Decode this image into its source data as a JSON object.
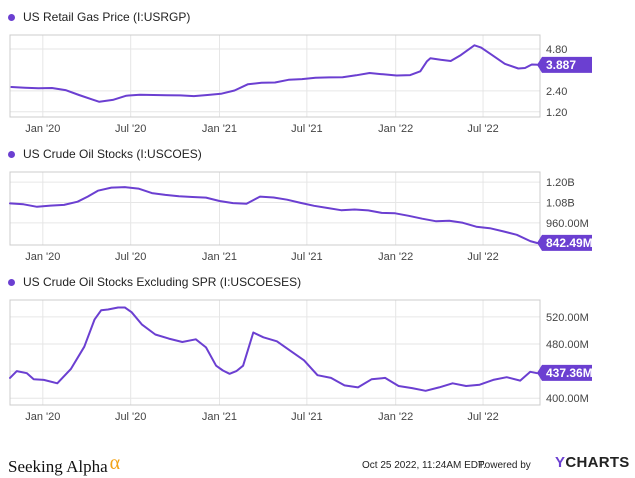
{
  "chart_data": [
    {
      "type": "line",
      "title": "US Retail Gas Price (I:USRGP)",
      "x_ticks": [
        "Jan '20",
        "Jul '20",
        "Jan '21",
        "Jul '21",
        "Jan '22",
        "Jul '22"
      ],
      "y_ticks": [
        "4.80",
        "2.40",
        "1.20"
      ],
      "y_tick_values": [
        4.8,
        2.4,
        1.2
      ],
      "ylim": [
        0.9,
        5.6
      ],
      "last_value": 3.887,
      "last_value_label": "3.887",
      "series": [
        {
          "x": [
            "2019-10-28",
            "2019-11-25",
            "2019-12-23",
            "2020-01-20",
            "2020-02-17",
            "2020-03-16",
            "2020-04-13",
            "2020-04-27",
            "2020-05-25",
            "2020-06-22",
            "2020-07-20",
            "2020-08-17",
            "2020-09-14",
            "2020-10-12",
            "2020-11-09",
            "2020-12-07",
            "2021-01-04",
            "2021-02-01",
            "2021-03-01",
            "2021-03-29",
            "2021-04-26",
            "2021-05-24",
            "2021-06-21",
            "2021-07-19",
            "2021-08-16",
            "2021-09-13",
            "2021-10-11",
            "2021-11-08",
            "2021-12-06",
            "2022-01-03",
            "2022-01-31",
            "2022-02-21",
            "2022-03-07",
            "2022-03-14",
            "2022-04-04",
            "2022-04-25",
            "2022-05-16",
            "2022-06-13",
            "2022-06-27",
            "2022-07-18",
            "2022-08-15",
            "2022-09-12",
            "2022-09-26",
            "2022-10-10",
            "2022-10-24"
          ],
          "values": [
            2.62,
            2.58,
            2.55,
            2.56,
            2.44,
            2.16,
            1.9,
            1.77,
            1.88,
            2.12,
            2.17,
            2.16,
            2.15,
            2.14,
            2.1,
            2.16,
            2.23,
            2.42,
            2.78,
            2.86,
            2.88,
            3.03,
            3.07,
            3.15,
            3.17,
            3.18,
            3.29,
            3.42,
            3.35,
            3.28,
            3.3,
            3.52,
            4.1,
            4.27,
            4.18,
            4.11,
            4.45,
            5.01,
            4.88,
            4.49,
            3.95,
            3.68,
            3.71,
            3.91,
            3.89
          ]
        }
      ]
    },
    {
      "type": "line",
      "title": "US Crude Oil Stocks (I:USCOES)",
      "x_ticks": [
        "Jan '20",
        "Jul '20",
        "Jan '21",
        "Jul '21",
        "Jan '22",
        "Jul '22"
      ],
      "y_ticks": [
        "1.20B",
        "1.08B",
        "960.00M"
      ],
      "y_tick_values": [
        1200,
        1080,
        960
      ],
      "y_units": "millions of barrels",
      "ylim": [
        830,
        1260
      ],
      "last_value": 842.49,
      "last_value_label": "842.49M",
      "series": [
        {
          "x": [
            "2019-10-25",
            "2019-11-22",
            "2019-12-20",
            "2020-01-17",
            "2020-02-14",
            "2020-03-13",
            "2020-04-03",
            "2020-04-24",
            "2020-05-22",
            "2020-06-19",
            "2020-07-17",
            "2020-08-14",
            "2020-09-11",
            "2020-10-09",
            "2020-11-06",
            "2020-12-04",
            "2021-01-01",
            "2021-01-29",
            "2021-02-26",
            "2021-03-26",
            "2021-04-23",
            "2021-05-21",
            "2021-06-18",
            "2021-07-16",
            "2021-08-13",
            "2021-09-10",
            "2021-10-08",
            "2021-11-05",
            "2021-12-03",
            "2021-12-31",
            "2022-01-28",
            "2022-02-25",
            "2022-03-25",
            "2022-04-22",
            "2022-05-20",
            "2022-06-17",
            "2022-07-15",
            "2022-08-12",
            "2022-09-09",
            "2022-10-07",
            "2022-10-21"
          ],
          "values": [
            1075,
            1070,
            1055,
            1062,
            1066,
            1085,
            1115,
            1150,
            1168,
            1171,
            1162,
            1136,
            1125,
            1117,
            1113,
            1109,
            1089,
            1077,
            1073,
            1115,
            1110,
            1097,
            1078,
            1061,
            1048,
            1035,
            1039,
            1034,
            1019,
            1017,
            1002,
            985,
            970,
            973,
            961,
            938,
            929,
            910,
            890,
            853,
            842
          ]
        }
      ]
    },
    {
      "type": "line",
      "title": "US Crude Oil Stocks Excluding SPR (I:USCOESES)",
      "x_ticks": [
        "Jan '20",
        "Jul '20",
        "Jan '21",
        "Jul '21",
        "Jan '22",
        "Jul '22"
      ],
      "y_ticks": [
        "520.00M",
        "480.00M",
        "440.00M",
        "400.00M"
      ],
      "y_tick_values": [
        520,
        480,
        440,
        400
      ],
      "y_units": "millions of barrels",
      "ylim": [
        390,
        545
      ],
      "last_value": 437.36,
      "last_value_label": "437.36M",
      "series": [
        {
          "x": [
            "2019-10-25",
            "2019-11-08",
            "2019-11-29",
            "2019-12-13",
            "2020-01-03",
            "2020-01-31",
            "2020-02-28",
            "2020-03-27",
            "2020-04-17",
            "2020-05-01",
            "2020-05-15",
            "2020-06-05",
            "2020-06-19",
            "2020-07-03",
            "2020-07-24",
            "2020-08-21",
            "2020-09-18",
            "2020-10-16",
            "2020-11-13",
            "2020-12-04",
            "2020-12-25",
            "2021-01-08",
            "2021-01-22",
            "2021-02-05",
            "2021-02-19",
            "2021-03-12",
            "2021-04-02",
            "2021-04-30",
            "2021-05-28",
            "2021-06-25",
            "2021-07-23",
            "2021-08-20",
            "2021-09-17",
            "2021-10-15",
            "2021-11-12",
            "2021-12-10",
            "2022-01-07",
            "2022-02-04",
            "2022-03-04",
            "2022-04-01",
            "2022-04-29",
            "2022-05-27",
            "2022-06-24",
            "2022-07-22",
            "2022-08-19",
            "2022-09-16",
            "2022-10-07",
            "2022-10-21"
          ],
          "values": [
            430,
            440,
            437,
            428,
            427,
            422,
            443,
            476,
            516,
            530,
            531,
            534,
            534,
            527,
            509,
            494,
            488,
            483,
            487,
            475,
            448,
            441,
            436,
            440,
            448,
            497,
            490,
            484,
            470,
            456,
            434,
            430,
            419,
            416,
            428,
            430,
            418,
            415,
            411,
            416,
            422,
            418,
            420,
            427,
            431,
            426,
            439,
            437
          ]
        }
      ]
    }
  ],
  "footer": {
    "brand": "Seeking Alpha",
    "brand_mark": "α",
    "timestamp": "Oct 25 2022, 11:24AM EDT.",
    "powered_by": "Powered by",
    "ycharts_y": "Y",
    "ycharts_rest": "CHARTS"
  },
  "colors": {
    "line": "#6b3fd1",
    "grid": "#e6e6e6",
    "border": "#cccccc",
    "badge": "#6b3fd1",
    "brand_alpha": "#f2a316"
  }
}
